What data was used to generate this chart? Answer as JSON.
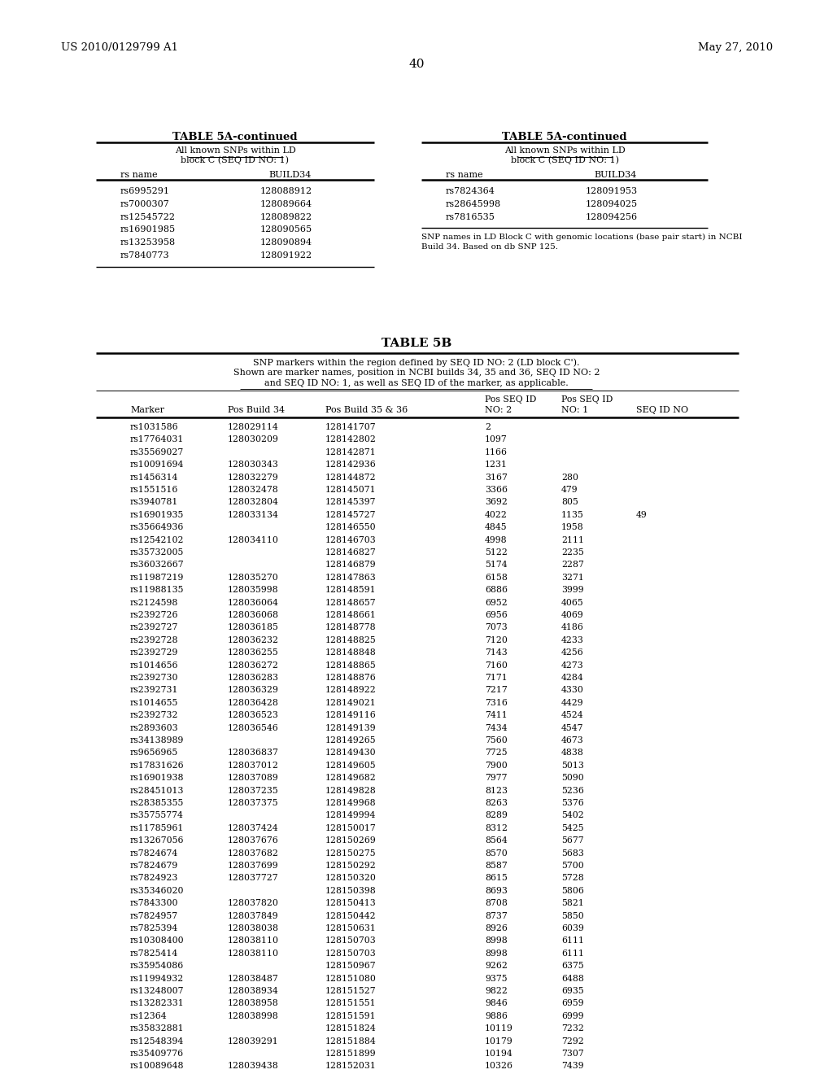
{
  "header_left": "US 2010/0129799 A1",
  "header_right": "May 27, 2010",
  "page_number": "40",
  "table5a_title": "TABLE 5A-continued",
  "table5a_left_data": [
    [
      "rs6995291",
      "128088912"
    ],
    [
      "rs7000307",
      "128089664"
    ],
    [
      "rs12545722",
      "128089822"
    ],
    [
      "rs16901985",
      "128090565"
    ],
    [
      "rs13253958",
      "128090894"
    ],
    [
      "rs7840773",
      "128091922"
    ]
  ],
  "table5a_right_data": [
    [
      "rs7824364",
      "128091953"
    ],
    [
      "rs28645998",
      "128094025"
    ],
    [
      "rs7816535",
      "128094256"
    ]
  ],
  "table5a_footnote_line1": "SNP names in LD Block C with genomic locations (base pair start) in NCBI",
  "table5a_footnote_line2": "Build 34. Based on db SNP 125.",
  "table5b_title": "TABLE 5B",
  "table5b_desc1": "SNP markers within the region defined by SEQ ID NO: 2 (LD block C').",
  "table5b_desc2": "Shown are marker names, position in NCBI builds 34, 35 and 36, SEQ ID NO: 2",
  "table5b_desc3": "and SEQ ID NO: 1, as well as SEQ ID of the marker, as applicable.",
  "table5b_data": [
    [
      "rs1031586",
      "128029114",
      "128141707",
      "2",
      "",
      ""
    ],
    [
      "rs17764031",
      "128030209",
      "128142802",
      "1097",
      "",
      ""
    ],
    [
      "rs35569027",
      "",
      "128142871",
      "1166",
      "",
      ""
    ],
    [
      "rs10091694",
      "128030343",
      "128142936",
      "1231",
      "",
      ""
    ],
    [
      "rs1456314",
      "128032279",
      "128144872",
      "3167",
      "280",
      ""
    ],
    [
      "rs1551516",
      "128032478",
      "128145071",
      "3366",
      "479",
      ""
    ],
    [
      "rs3940781",
      "128032804",
      "128145397",
      "3692",
      "805",
      ""
    ],
    [
      "rs16901935",
      "128033134",
      "128145727",
      "4022",
      "1135",
      "49"
    ],
    [
      "rs35664936",
      "",
      "128146550",
      "4845",
      "1958",
      ""
    ],
    [
      "rs12542102",
      "128034110",
      "128146703",
      "4998",
      "2111",
      ""
    ],
    [
      "rs35732005",
      "",
      "128146827",
      "5122",
      "2235",
      ""
    ],
    [
      "rs36032667",
      "",
      "128146879",
      "5174",
      "2287",
      ""
    ],
    [
      "rs11987219",
      "128035270",
      "128147863",
      "6158",
      "3271",
      ""
    ],
    [
      "rs11988135",
      "128035998",
      "128148591",
      "6886",
      "3999",
      ""
    ],
    [
      "rs2124598",
      "128036064",
      "128148657",
      "6952",
      "4065",
      ""
    ],
    [
      "rs2392726",
      "128036068",
      "128148661",
      "6956",
      "4069",
      ""
    ],
    [
      "rs2392727",
      "128036185",
      "128148778",
      "7073",
      "4186",
      ""
    ],
    [
      "rs2392728",
      "128036232",
      "128148825",
      "7120",
      "4233",
      ""
    ],
    [
      "rs2392729",
      "128036255",
      "128148848",
      "7143",
      "4256",
      ""
    ],
    [
      "rs1014656",
      "128036272",
      "128148865",
      "7160",
      "4273",
      ""
    ],
    [
      "rs2392730",
      "128036283",
      "128148876",
      "7171",
      "4284",
      ""
    ],
    [
      "rs2392731",
      "128036329",
      "128148922",
      "7217",
      "4330",
      ""
    ],
    [
      "rs1014655",
      "128036428",
      "128149021",
      "7316",
      "4429",
      ""
    ],
    [
      "rs2392732",
      "128036523",
      "128149116",
      "7411",
      "4524",
      ""
    ],
    [
      "rs2893603",
      "128036546",
      "128149139",
      "7434",
      "4547",
      ""
    ],
    [
      "rs34138989",
      "",
      "128149265",
      "7560",
      "4673",
      ""
    ],
    [
      "rs9656965",
      "128036837",
      "128149430",
      "7725",
      "4838",
      ""
    ],
    [
      "rs17831626",
      "128037012",
      "128149605",
      "7900",
      "5013",
      ""
    ],
    [
      "rs16901938",
      "128037089",
      "128149682",
      "7977",
      "5090",
      ""
    ],
    [
      "rs28451013",
      "128037235",
      "128149828",
      "8123",
      "5236",
      ""
    ],
    [
      "rs28385355",
      "128037375",
      "128149968",
      "8263",
      "5376",
      ""
    ],
    [
      "rs35755774",
      "",
      "128149994",
      "8289",
      "5402",
      ""
    ],
    [
      "rs11785961",
      "128037424",
      "128150017",
      "8312",
      "5425",
      ""
    ],
    [
      "rs13267056",
      "128037676",
      "128150269",
      "8564",
      "5677",
      ""
    ],
    [
      "rs7824674",
      "128037682",
      "128150275",
      "8570",
      "5683",
      ""
    ],
    [
      "rs7824679",
      "128037699",
      "128150292",
      "8587",
      "5700",
      ""
    ],
    [
      "rs7824923",
      "128037727",
      "128150320",
      "8615",
      "5728",
      ""
    ],
    [
      "rs35346020",
      "",
      "128150398",
      "8693",
      "5806",
      ""
    ],
    [
      "rs7843300",
      "128037820",
      "128150413",
      "8708",
      "5821",
      ""
    ],
    [
      "rs7824957",
      "128037849",
      "128150442",
      "8737",
      "5850",
      ""
    ],
    [
      "rs7825394",
      "128038038",
      "128150631",
      "8926",
      "6039",
      ""
    ],
    [
      "rs10308400",
      "128038110",
      "128150703",
      "8998",
      "6111",
      ""
    ],
    [
      "rs7825414",
      "128038110",
      "128150703",
      "8998",
      "6111",
      ""
    ],
    [
      "rs35954086",
      "",
      "128150967",
      "9262",
      "6375",
      ""
    ],
    [
      "rs11994932",
      "128038487",
      "128151080",
      "9375",
      "6488",
      ""
    ],
    [
      "rs13248007",
      "128038934",
      "128151527",
      "9822",
      "6935",
      ""
    ],
    [
      "rs13282331",
      "128038958",
      "128151551",
      "9846",
      "6959",
      ""
    ],
    [
      "rs12364",
      "128038998",
      "128151591",
      "9886",
      "6999",
      ""
    ],
    [
      "rs35832881",
      "",
      "128151824",
      "10119",
      "7232",
      ""
    ],
    [
      "rs12548394",
      "128039291",
      "128151884",
      "10179",
      "7292",
      ""
    ],
    [
      "rs35409776",
      "",
      "128151899",
      "10194",
      "7307",
      ""
    ],
    [
      "rs10089648",
      "128039438",
      "128152031",
      "10326",
      "7439",
      ""
    ]
  ]
}
